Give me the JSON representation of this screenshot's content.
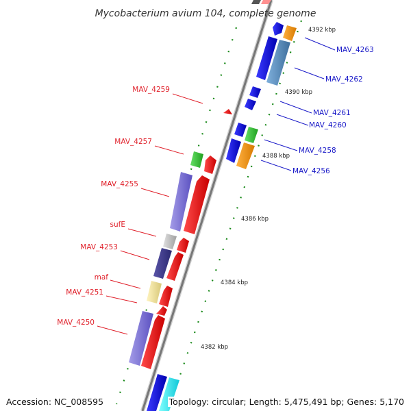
{
  "title": "Mycobacterium avium 104, complete genome",
  "footer": {
    "accession": "Accession: NC_008595",
    "summary": "Topology: circular; Length: 5,475,491 bp; Genes: 5,170"
  },
  "scale_labels": [
    "4392 kbp",
    "4390 kbp",
    "4388 kbp",
    "4386 kbp",
    "4384 kbp",
    "4382 kbp"
  ],
  "left_genes": [
    "MAV_4259",
    "MAV_4257",
    "MAV_4255",
    "sufE",
    "MAV_4253",
    "maf",
    "MAV_4251",
    "MAV_4250"
  ],
  "right_genes": [
    "MAV_4263",
    "MAV_4262",
    "MAV_4261",
    "MAV_4260",
    "MAV_4258",
    "MAV_4256"
  ],
  "colors": {
    "reverse_label": "#e0202a",
    "forward_label": "#1a1ac8",
    "tick": "#1a8a1a",
    "backbone": "#8c8c8c"
  }
}
